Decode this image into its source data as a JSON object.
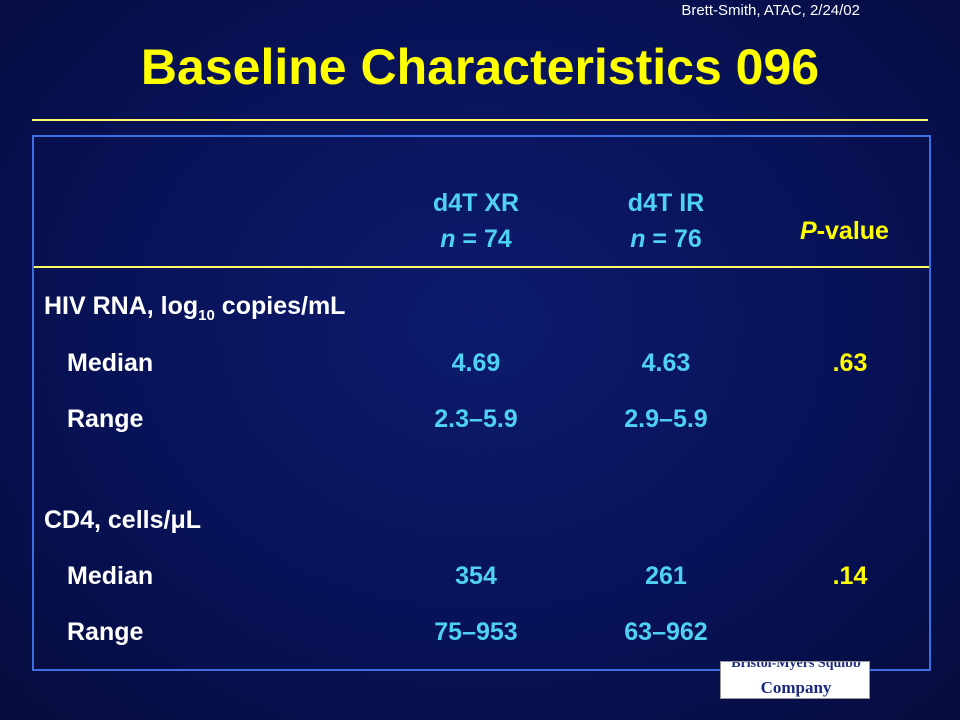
{
  "citation": "Brett-Smith, ATAC, 2/24/02",
  "title": "Baseline Characteristics 096",
  "columns": [
    {
      "name": "d4T XR",
      "n_label": "n",
      "n_value": " = 74"
    },
    {
      "name": "d4T IR",
      "n_label": "n",
      "n_value": " = 76"
    }
  ],
  "pvalue_header": {
    "italic": "P",
    "rest": "-value"
  },
  "sections": [
    {
      "label": "HIV RNA, log",
      "label_sub": "10",
      "label_after": " copies/mL",
      "rows": [
        {
          "label": "Median",
          "xr": "4.69",
          "ir": "4.63",
          "p": ".63"
        },
        {
          "label": "Range",
          "xr": "2.3–5.9",
          "ir": "2.9–5.9",
          "p": ""
        }
      ]
    },
    {
      "label": "CD4, cells/",
      "label_sub": "",
      "label_after": "μL",
      "rows": [
        {
          "label": "Median",
          "xr": "354",
          "ir": "261",
          "p": ".14"
        },
        {
          "label": "Range",
          "xr": "75–953",
          "ir": "63–962",
          "p": ""
        }
      ]
    }
  ],
  "logo": {
    "top_text": "Bristol-Myers Squibb",
    "bottom_text": "Company"
  }
}
